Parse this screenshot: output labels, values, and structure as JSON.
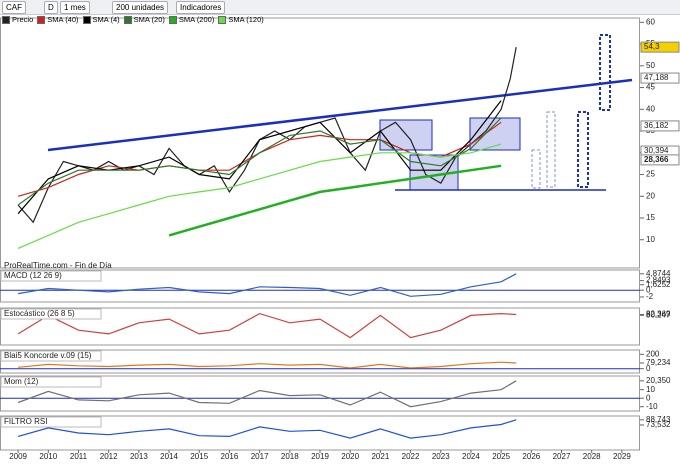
{
  "toolbar": {
    "symbol": "CAF",
    "mode": "D",
    "period": "1 mes",
    "units": "200 unidades",
    "indicators": "Indicadores"
  },
  "time_axis": {
    "xlim": [
      2008.4,
      2029.6
    ],
    "xticks": [
      2009,
      2010,
      2011,
      2012,
      2013,
      2014,
      2015,
      2016,
      2017,
      2018,
      2019,
      2020,
      2021,
      2022,
      2023,
      2024,
      2025,
      2026,
      2027,
      2028,
      2029
    ]
  },
  "chart_data": [
    {
      "type": "line",
      "title": "ProRealTime.com - Fin de Día",
      "ylim": [
        3.5,
        61
      ],
      "yticks": [
        10,
        15,
        20,
        25,
        30,
        35,
        40,
        45,
        50,
        55,
        60
      ],
      "price_tags": [
        {
          "value": 54.3,
          "label": "54,3",
          "color": "#f5d000"
        },
        {
          "value": 47.188,
          "label": "47,188",
          "color": "#ffffff"
        },
        {
          "value": 36.182,
          "label": "36,182",
          "color": "#ffffff"
        },
        {
          "value": 30.394,
          "label": "30,394",
          "color": "#ffffff"
        },
        {
          "value": 28.366,
          "label": "28,366",
          "color": "#ffffff"
        }
      ],
      "series": [
        {
          "name": "Precio",
          "color": "#222222",
          "x": [
            2009,
            2009.5,
            2010,
            2010.5,
            2011,
            2011.5,
            2012,
            2012.5,
            2013,
            2013.5,
            2014,
            2014.5,
            2015,
            2015.5,
            2016,
            2016.5,
            2017,
            2017.5,
            2018,
            2018.5,
            2019,
            2019.5,
            2020,
            2020.5,
            2021,
            2021.5,
            2022,
            2022.5,
            2023,
            2023.5,
            2024,
            2024.5,
            2025,
            2025.3,
            2025.5
          ],
          "values": [
            18,
            14,
            22,
            28,
            27,
            26,
            28,
            26,
            27,
            25,
            31,
            27,
            25,
            27,
            21,
            26,
            33,
            35,
            33,
            36,
            37,
            38,
            30,
            26,
            35,
            37,
            33,
            25,
            23,
            29,
            32,
            35,
            40,
            47,
            54.3
          ]
        },
        {
          "name": "SMA (40)",
          "color": "#cc2222",
          "x": [
            2009,
            2010,
            2011,
            2012,
            2013,
            2014,
            2015,
            2016,
            2017,
            2018,
            2019,
            2020,
            2021,
            2022,
            2023,
            2024,
            2025
          ],
          "values": [
            20,
            22,
            25,
            27,
            26,
            27,
            26,
            26,
            30,
            33,
            34,
            33,
            33,
            30,
            29,
            32,
            37
          ]
        },
        {
          "name": "SMA (4)",
          "color": "#000000",
          "x": [
            2009,
            2010,
            2011,
            2012,
            2013,
            2014,
            2015,
            2016,
            2017,
            2018,
            2019,
            2020,
            2021,
            2022,
            2023,
            2024,
            2025
          ],
          "values": [
            16,
            24,
            27,
            26,
            27,
            29,
            25,
            24,
            33,
            35,
            37,
            30,
            35,
            26,
            26,
            33,
            42
          ]
        },
        {
          "name": "SMA (20)",
          "color": "#2a7a2a",
          "x": [
            2009,
            2010,
            2011,
            2012,
            2013,
            2014,
            2015,
            2016,
            2017,
            2018,
            2019,
            2020,
            2021,
            2022,
            2023,
            2024,
            2025
          ],
          "values": [
            18,
            23,
            26,
            26,
            26,
            27,
            26,
            25,
            30,
            34,
            35,
            32,
            33,
            28,
            27,
            31,
            38
          ]
        },
        {
          "name": "SMA (200)",
          "color": "#22b022",
          "x": [
            2009,
            2010,
            2011,
            2012,
            2013,
            2014,
            2015,
            2016,
            2017,
            2018,
            2019,
            2020,
            2021,
            2022,
            2023,
            2024,
            2025
          ],
          "values": [
            null,
            null,
            null,
            null,
            null,
            11,
            13,
            15,
            17,
            19,
            21,
            22,
            23,
            24,
            25,
            26,
            27
          ]
        },
        {
          "name": "SMA (120)",
          "color": "#66dd44",
          "x": [
            2009,
            2010,
            2011,
            2012,
            2013,
            2014,
            2015,
            2016,
            2017,
            2018,
            2019,
            2020,
            2021,
            2022,
            2023,
            2024,
            2025
          ],
          "values": [
            8,
            11,
            14,
            16,
            18,
            20,
            21,
            22,
            24,
            26,
            28,
            29,
            30,
            30,
            29,
            30,
            32
          ]
        }
      ]
    },
    {
      "type": "line",
      "title": "MACD (12 26 9)",
      "ylim": [
        -3.5,
        6
      ],
      "yticks": [
        {
          "value": 4.8744,
          "label": "4,8744"
        },
        {
          "value": 2.8493,
          "label": "2,8493"
        },
        {
          "value": 1.6252,
          "label": "1,6252"
        },
        0,
        -2
      ],
      "series": [
        {
          "color": "#3060c0",
          "x": [
            2009,
            2010,
            2011,
            2012,
            2013,
            2014,
            2015,
            2016,
            2017,
            2018,
            2019,
            2020,
            2021,
            2022,
            2023,
            2024,
            2025,
            2025.5
          ],
          "values": [
            -1,
            0.5,
            0,
            -0.5,
            0.3,
            0.8,
            -0.5,
            -1,
            1,
            0.8,
            0.5,
            -1.5,
            0.8,
            -1.8,
            -1.2,
            1,
            2.5,
            4.87
          ]
        }
      ]
    },
    {
      "type": "line",
      "title": "Estocástico (26 8 5)",
      "ylim": [
        0,
        100
      ],
      "yticks": [
        {
          "value": 82.369,
          "label": "82,369"
        },
        {
          "value": 80.247,
          "label": "80,247"
        }
      ],
      "series": [
        {
          "color": "#d04040",
          "x": [
            2009,
            2010,
            2011,
            2012,
            2013,
            2014,
            2015,
            2016,
            2017,
            2018,
            2019,
            2020,
            2021,
            2022,
            2023,
            2024,
            2025,
            2025.5
          ],
          "values": [
            30,
            80,
            40,
            30,
            60,
            70,
            30,
            40,
            85,
            60,
            70,
            20,
            80,
            20,
            40,
            80,
            85,
            82.4
          ]
        }
      ]
    },
    {
      "type": "line",
      "title": "Blai5 Koncorde v.09 (15)",
      "ylim": [
        -60,
        260
      ],
      "yticks": [
        200,
        {
          "value": 79.234,
          "label": "79,234"
        },
        0
      ],
      "series": [
        {
          "color": "#e07820",
          "x": [
            2009,
            2010,
            2011,
            2012,
            2013,
            2014,
            2015,
            2016,
            2017,
            2018,
            2019,
            2020,
            2021,
            2022,
            2023,
            2024,
            2025,
            2025.5
          ],
          "values": [
            20,
            60,
            40,
            30,
            50,
            60,
            30,
            40,
            70,
            50,
            60,
            10,
            60,
            10,
            30,
            70,
            90,
            79.2
          ]
        }
      ]
    },
    {
      "type": "line",
      "title": "Mom (12)",
      "ylim": [
        -15,
        26
      ],
      "yticks": [
        {
          "value": 20.35,
          "label": "20,350"
        },
        10,
        0,
        -10
      ],
      "series": [
        {
          "color": "#707070",
          "x": [
            2009,
            2010,
            2011,
            2012,
            2013,
            2014,
            2015,
            2016,
            2017,
            2018,
            2019,
            2020,
            2021,
            2022,
            2023,
            2024,
            2025,
            2025.5
          ],
          "values": [
            -5,
            8,
            -2,
            -3,
            4,
            6,
            -5,
            -6,
            9,
            3,
            4,
            -8,
            7,
            -10,
            -4,
            6,
            10,
            20.35
          ]
        }
      ]
    },
    {
      "type": "line",
      "title": "FILTRO RSI",
      "ylim": [
        0,
        100
      ],
      "yticks": [
        {
          "value": 88.743,
          "label": "88,743"
        },
        {
          "value": 73.532,
          "label": "73,532"
        }
      ],
      "series": [
        {
          "color": "#2050e0",
          "x": [
            2009,
            2010,
            2011,
            2012,
            2013,
            2014,
            2015,
            2016,
            2017,
            2018,
            2019,
            2020,
            2021,
            2022,
            2023,
            2024,
            2025,
            2025.5
          ],
          "values": [
            40,
            65,
            50,
            45,
            55,
            62,
            42,
            40,
            68,
            55,
            58,
            35,
            62,
            35,
            45,
            65,
            75,
            88.7
          ]
        }
      ]
    }
  ]
}
